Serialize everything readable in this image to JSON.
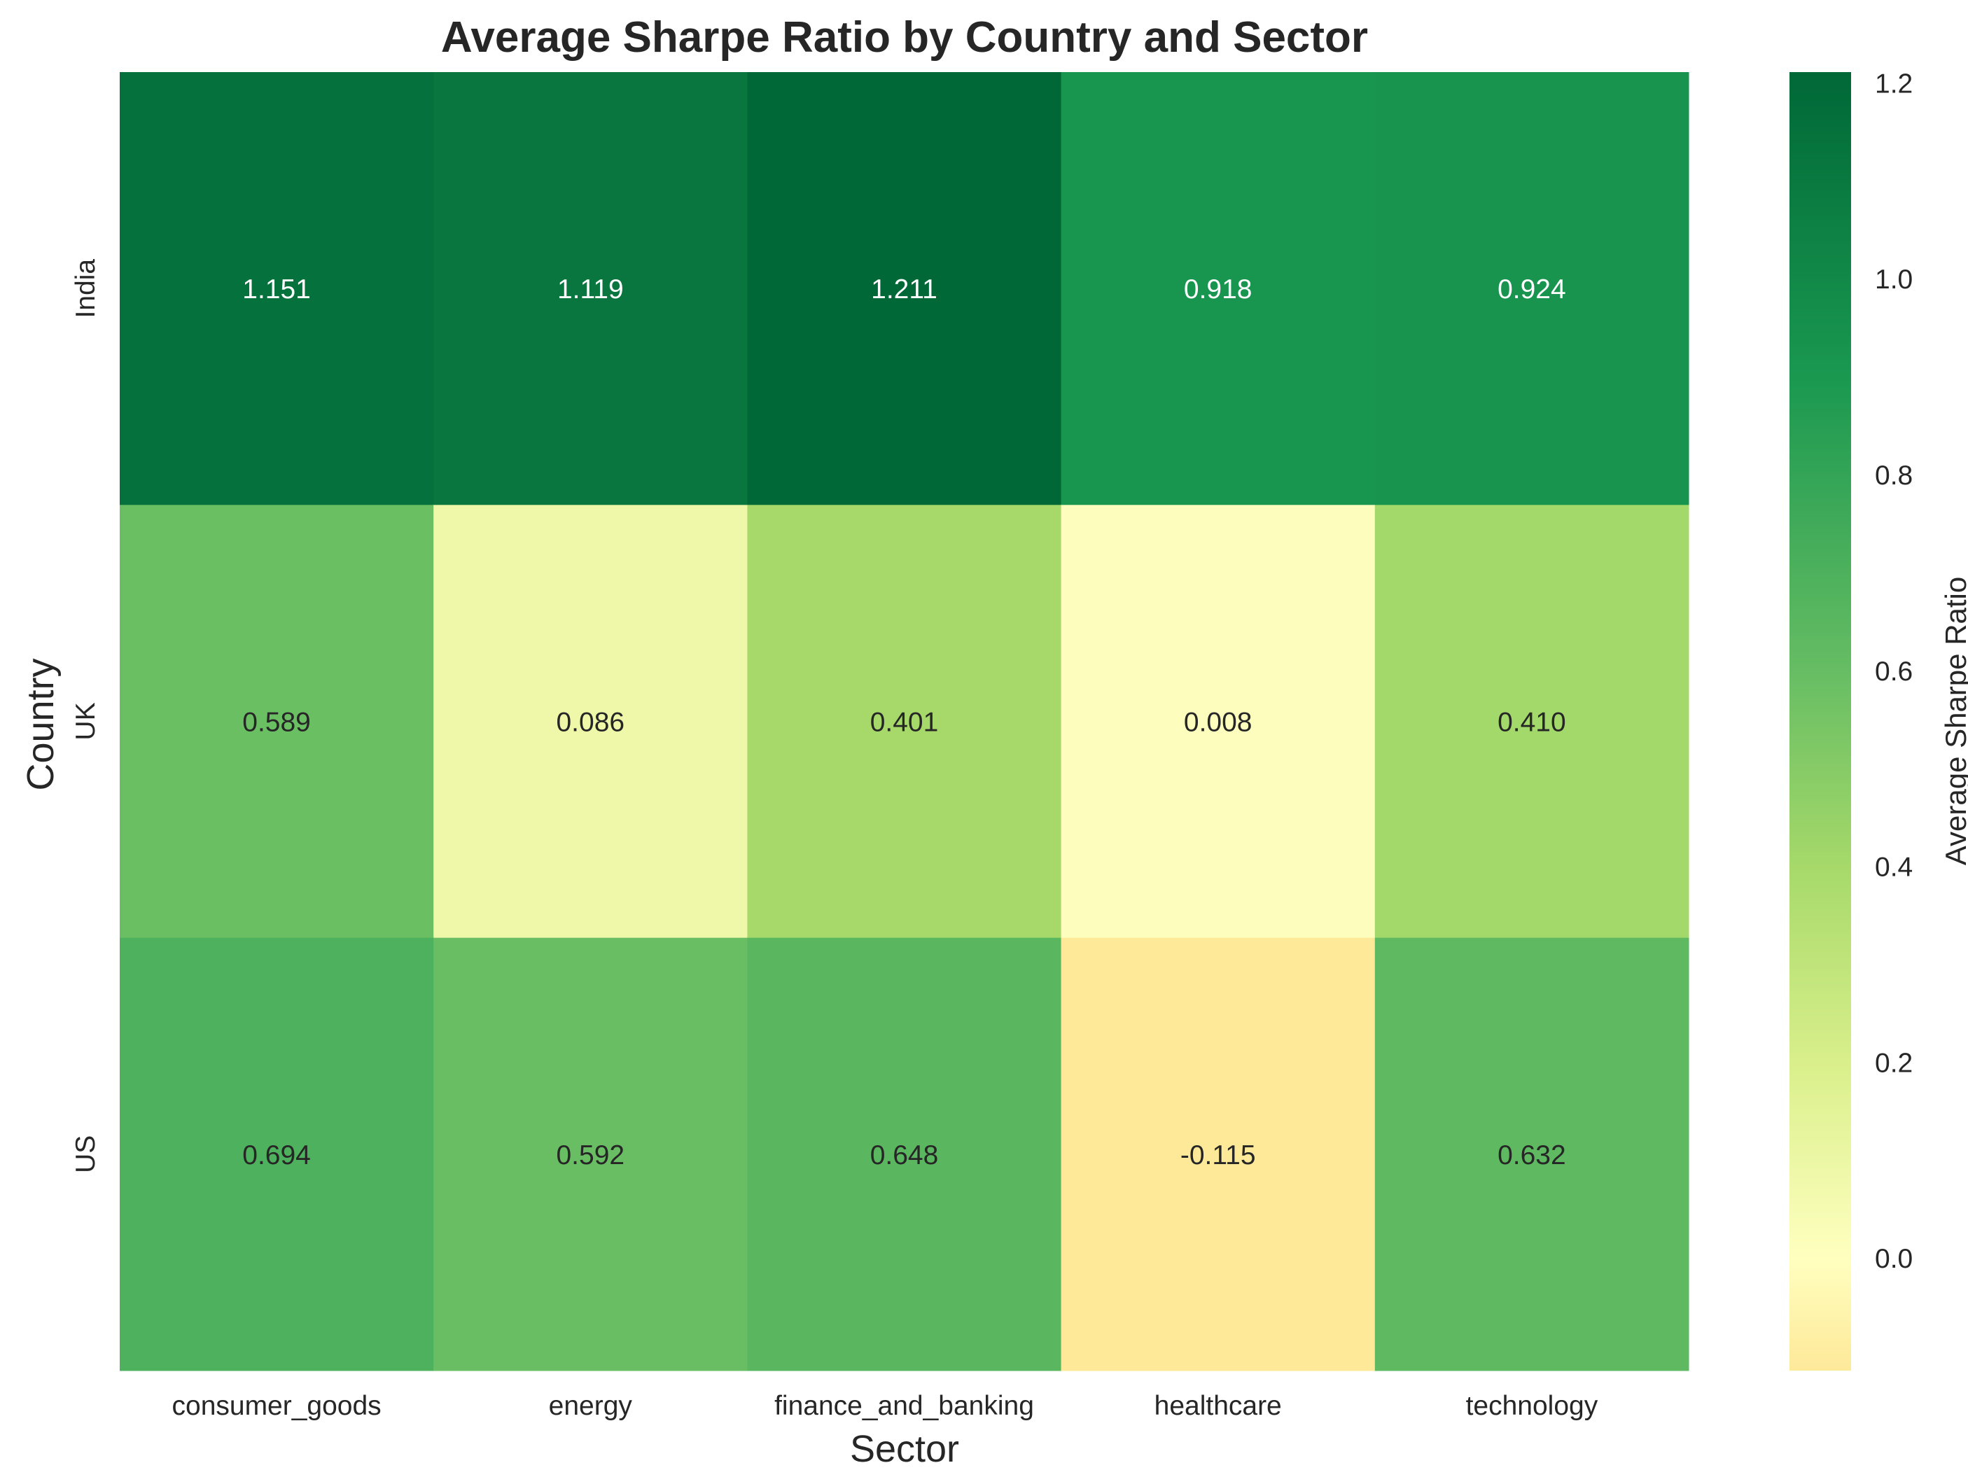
{
  "chart_data": {
    "type": "heatmap",
    "title": "Average Sharpe Ratio by Country and Sector",
    "xlabel": "Sector",
    "ylabel": "Country",
    "x_categories": [
      "consumer_goods",
      "energy",
      "finance_and_banking",
      "healthcare",
      "technology"
    ],
    "y_categories": [
      "India",
      "UK",
      "US"
    ],
    "values": [
      [
        1.151,
        1.119,
        1.211,
        0.918,
        0.924
      ],
      [
        0.589,
        0.086,
        0.401,
        0.008,
        0.41
      ],
      [
        0.694,
        0.592,
        0.648,
        -0.115,
        0.632
      ]
    ],
    "cell_labels": [
      [
        "1.151",
        "1.119",
        "1.211",
        "0.918",
        "0.924"
      ],
      [
        "0.589",
        "0.086",
        "0.401",
        "0.008",
        "0.410"
      ],
      [
        "0.694",
        "0.592",
        "0.648",
        "-0.115",
        "0.632"
      ]
    ],
    "colorbar": {
      "label": "Average Sharpe Ratio",
      "vmin": -0.115,
      "vmax": 1.211,
      "ticks": [
        0.0,
        0.2,
        0.4,
        0.6,
        0.8,
        1.0,
        1.2
      ],
      "tick_labels": [
        "0.0",
        "0.2",
        "0.4",
        "0.6",
        "0.8",
        "1.0",
        "1.2"
      ],
      "colormap": "RdYlGn (upper half)",
      "colors": [
        "#fee999",
        "#ffffbf",
        "#d9ef8b",
        "#a6d96a",
        "#66bd63",
        "#1a9850",
        "#006837"
      ]
    },
    "grid": false
  }
}
